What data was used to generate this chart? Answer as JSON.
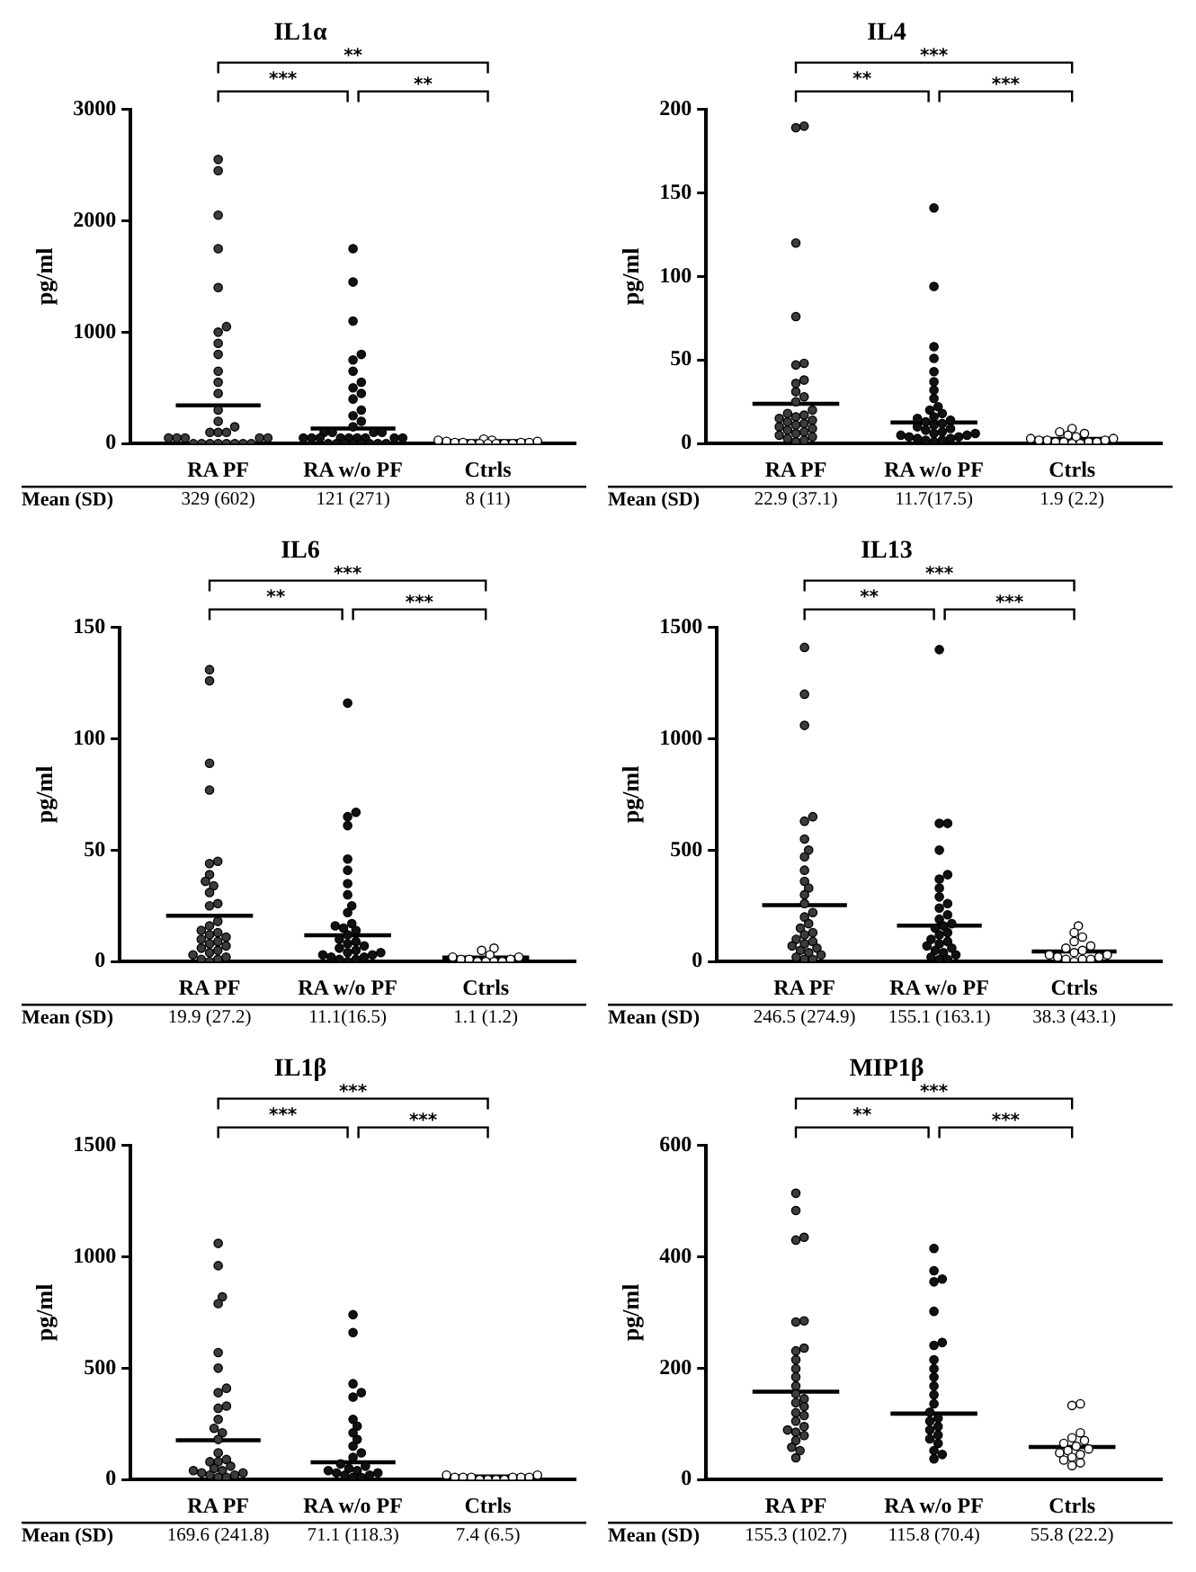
{
  "chart_data": [
    {
      "type": "scatter",
      "title": "IL1α",
      "ylabel": "pg/ml",
      "categories": [
        "RA PF",
        "RA w/o PF",
        "Ctrls"
      ],
      "ylim": [
        0,
        3000
      ],
      "yticks": [
        0,
        1000,
        2000,
        3000
      ],
      "grid": false,
      "legend": false,
      "annotations": [
        "**",
        "***",
        "**",
        "Mean (SD)",
        "329 (602)",
        "121 (271)",
        "8 (11)"
      ],
      "series": [
        {
          "type": "scatter",
          "marker": "circle",
          "color": "#3c3c3c",
          "x": [
            "RA PF",
            "RA PF",
            "RA PF",
            "RA PF",
            "RA PF",
            "RA PF",
            "RA PF",
            "RA PF",
            "RA PF",
            "RA PF",
            "RA PF",
            "RA PF",
            "RA PF",
            "RA PF",
            "RA PF",
            "RA PF",
            "RA PF",
            "RA PF",
            "RA PF",
            "RA PF",
            "RA PF",
            "RA PF",
            "RA PF",
            "RA PF",
            "RA PF",
            "RA PF",
            "RA PF",
            "RA PF",
            "RA PF",
            "RA PF",
            "RA PF"
          ],
          "values": [
            2550,
            2450,
            2050,
            1750,
            1400,
            1050,
            1000,
            900,
            800,
            650,
            550,
            450,
            300,
            200,
            150,
            100,
            100,
            100,
            50,
            50,
            50,
            50,
            50,
            0,
            0,
            0,
            0,
            0,
            0,
            0,
            0
          ]
        },
        {
          "type": "scatter",
          "marker": "circle",
          "color": "#111111",
          "x": [
            "RA w/o PF",
            "RA w/o PF",
            "RA w/o PF",
            "RA w/o PF",
            "RA w/o PF",
            "RA w/o PF",
            "RA w/o PF",
            "RA w/o PF",
            "RA w/o PF",
            "RA w/o PF",
            "RA w/o PF",
            "RA w/o PF",
            "RA w/o PF",
            "RA w/o PF",
            "RA w/o PF",
            "RA w/o PF",
            "RA w/o PF",
            "RA w/o PF",
            "RA w/o PF",
            "RA w/o PF",
            "RA w/o PF",
            "RA w/o PF",
            "RA w/o PF",
            "RA w/o PF",
            "RA w/o PF",
            "RA w/o PF",
            "RA w/o PF",
            "RA w/o PF",
            "RA w/o PF",
            "RA w/o PF",
            "RA w/o PF",
            "RA w/o PF",
            "RA w/o PF",
            "RA w/o PF",
            "RA w/o PF"
          ],
          "values": [
            1750,
            1450,
            1100,
            800,
            750,
            650,
            550,
            500,
            450,
            400,
            300,
            250,
            200,
            150,
            100,
            100,
            100,
            100,
            50,
            50,
            50,
            50,
            50,
            50,
            50,
            50,
            50,
            0,
            0,
            0,
            0,
            0,
            0,
            0,
            0
          ]
        },
        {
          "type": "scatter",
          "marker": "circle",
          "color": "#ffffff",
          "x": [
            "Ctrls",
            "Ctrls",
            "Ctrls",
            "Ctrls",
            "Ctrls",
            "Ctrls",
            "Ctrls",
            "Ctrls",
            "Ctrls",
            "Ctrls",
            "Ctrls",
            "Ctrls",
            "Ctrls",
            "Ctrls",
            "Ctrls"
          ],
          "values": [
            40,
            30,
            30,
            20,
            20,
            10,
            10,
            10,
            10,
            0,
            0,
            0,
            0,
            0,
            0
          ]
        },
        {
          "type": "bar",
          "color": "#000000",
          "base": [
            329,
            121,
            8
          ],
          "values": [
            0,
            0,
            0
          ]
        }
      ]
    },
    {
      "type": "scatter",
      "title": "IL4",
      "ylabel": "pg/ml",
      "categories": [
        "RA PF",
        "RA w/o PF",
        "Ctrls"
      ],
      "ylim": [
        0,
        200
      ],
      "yticks": [
        0,
        50,
        100,
        150,
        200
      ],
      "grid": false,
      "legend": false,
      "annotations": [
        "***",
        "**",
        "***",
        "Mean (SD)",
        "22.9 (37.1)",
        "11.7(17.5)",
        "1.9 (2.2)"
      ],
      "series": [
        {
          "type": "scatter",
          "marker": "circle",
          "color": "#3c3c3c",
          "x": [
            "RA PF",
            "RA PF",
            "RA PF",
            "RA PF",
            "RA PF",
            "RA PF",
            "RA PF",
            "RA PF",
            "RA PF",
            "RA PF",
            "RA PF",
            "RA PF",
            "RA PF",
            "RA PF",
            "RA PF",
            "RA PF",
            "RA PF",
            "RA PF",
            "RA PF",
            "RA PF",
            "RA PF",
            "RA PF",
            "RA PF",
            "RA PF",
            "RA PF",
            "RA PF",
            "RA PF",
            "RA PF",
            "RA PF",
            "RA PF"
          ],
          "values": [
            190,
            189,
            120,
            76,
            48,
            47,
            38,
            36,
            31,
            28,
            25,
            20,
            18,
            17,
            16,
            15,
            14,
            13,
            12,
            11,
            10,
            9,
            8,
            7,
            6,
            5,
            4,
            3,
            2,
            1
          ]
        },
        {
          "type": "scatter",
          "marker": "circle",
          "color": "#111111",
          "x": [
            "RA w/o PF",
            "RA w/o PF",
            "RA w/o PF",
            "RA w/o PF",
            "RA w/o PF",
            "RA w/o PF",
            "RA w/o PF",
            "RA w/o PF",
            "RA w/o PF",
            "RA w/o PF",
            "RA w/o PF",
            "RA w/o PF",
            "RA w/o PF",
            "RA w/o PF",
            "RA w/o PF",
            "RA w/o PF",
            "RA w/o PF",
            "RA w/o PF",
            "RA w/o PF",
            "RA w/o PF",
            "RA w/o PF",
            "RA w/o PF",
            "RA w/o PF",
            "RA w/o PF",
            "RA w/o PF",
            "RA w/o PF",
            "RA w/o PF",
            "RA w/o PF",
            "RA w/o PF",
            "RA w/o PF",
            "RA w/o PF",
            "RA w/o PF"
          ],
          "values": [
            141,
            94,
            58,
            51,
            43,
            37,
            32,
            27,
            22,
            20,
            18,
            16,
            15,
            14,
            13,
            12,
            11,
            10,
            9,
            8,
            7,
            6,
            6,
            5,
            5,
            4,
            4,
            3,
            3,
            2,
            2,
            1
          ]
        },
        {
          "type": "scatter",
          "marker": "circle",
          "color": "#ffffff",
          "x": [
            "Ctrls",
            "Ctrls",
            "Ctrls",
            "Ctrls",
            "Ctrls",
            "Ctrls",
            "Ctrls",
            "Ctrls",
            "Ctrls",
            "Ctrls",
            "Ctrls",
            "Ctrls",
            "Ctrls",
            "Ctrls",
            "Ctrls",
            "Ctrls"
          ],
          "values": [
            9,
            7,
            6,
            5,
            4,
            3,
            3,
            2,
            2,
            2,
            1,
            1,
            1,
            1,
            0,
            0
          ]
        },
        {
          "type": "bar",
          "color": "#000000",
          "base": [
            22.9,
            11.7,
            1.9
          ],
          "values": [
            0,
            0,
            0
          ]
        }
      ]
    },
    {
      "type": "scatter",
      "title": "IL6",
      "ylabel": "pg/ml",
      "categories": [
        "RA PF",
        "RA w/o PF",
        "Ctrls"
      ],
      "ylim": [
        0,
        150
      ],
      "yticks": [
        0,
        50,
        100,
        150
      ],
      "grid": false,
      "legend": false,
      "annotations": [
        "***",
        "**",
        "***",
        "Mean (SD)",
        "19.9 (27.2)",
        "11.1(16.5)",
        "1.1 (1.2)"
      ],
      "series": [
        {
          "type": "scatter",
          "marker": "circle",
          "color": "#3c3c3c",
          "x": [
            "RA PF",
            "RA PF",
            "RA PF",
            "RA PF",
            "RA PF",
            "RA PF",
            "RA PF",
            "RA PF",
            "RA PF",
            "RA PF",
            "RA PF",
            "RA PF",
            "RA PF",
            "RA PF",
            "RA PF",
            "RA PF",
            "RA PF",
            "RA PF",
            "RA PF",
            "RA PF",
            "RA PF",
            "RA PF",
            "RA PF",
            "RA PF",
            "RA PF",
            "RA PF",
            "RA PF",
            "RA PF",
            "RA PF",
            "RA PF"
          ],
          "values": [
            131,
            126,
            89,
            77,
            45,
            44,
            39,
            36,
            34,
            31,
            26,
            25,
            18,
            16,
            14,
            13,
            12,
            11,
            10,
            9,
            8,
            7,
            6,
            5,
            4,
            3,
            2,
            1,
            1,
            0
          ]
        },
        {
          "type": "scatter",
          "marker": "circle",
          "color": "#111111",
          "x": [
            "RA w/o PF",
            "RA w/o PF",
            "RA w/o PF",
            "RA w/o PF",
            "RA w/o PF",
            "RA w/o PF",
            "RA w/o PF",
            "RA w/o PF",
            "RA w/o PF",
            "RA w/o PF",
            "RA w/o PF",
            "RA w/o PF",
            "RA w/o PF",
            "RA w/o PF",
            "RA w/o PF",
            "RA w/o PF",
            "RA w/o PF",
            "RA w/o PF",
            "RA w/o PF",
            "RA w/o PF",
            "RA w/o PF",
            "RA w/o PF",
            "RA w/o PF",
            "RA w/o PF",
            "RA w/o PF",
            "RA w/o PF",
            "RA w/o PF",
            "RA w/o PF",
            "RA w/o PF",
            "RA w/o PF"
          ],
          "values": [
            116,
            67,
            65,
            61,
            46,
            41,
            35,
            30,
            25,
            22,
            17,
            16,
            15,
            14,
            12,
            10,
            9,
            8,
            7,
            6,
            5,
            4,
            4,
            3,
            3,
            2,
            2,
            1,
            1,
            0
          ]
        },
        {
          "type": "scatter",
          "marker": "circle",
          "color": "#ffffff",
          "x": [
            "Ctrls",
            "Ctrls",
            "Ctrls",
            "Ctrls",
            "Ctrls",
            "Ctrls",
            "Ctrls",
            "Ctrls",
            "Ctrls",
            "Ctrls",
            "Ctrls",
            "Ctrls"
          ],
          "values": [
            6,
            5,
            3,
            2,
            2,
            1,
            1,
            1,
            0,
            0,
            0,
            0
          ]
        },
        {
          "type": "bar",
          "color": "#000000",
          "base": [
            19.9,
            11.1,
            1.1
          ],
          "values": [
            0,
            0,
            0
          ]
        }
      ]
    },
    {
      "type": "scatter",
      "title": "IL13",
      "ylabel": "pg/ml",
      "categories": [
        "RA PF",
        "RA w/o PF",
        "Ctrls"
      ],
      "ylim": [
        0,
        1500
      ],
      "yticks": [
        0,
        500,
        1000,
        1500
      ],
      "grid": false,
      "legend": false,
      "annotations": [
        "***",
        "**",
        "***",
        "Mean (SD)",
        "246.5 (274.9)",
        "155.1 (163.1)",
        "38.3 (43.1)"
      ],
      "series": [
        {
          "type": "scatter",
          "marker": "circle",
          "color": "#3c3c3c",
          "x": [
            "RA PF",
            "RA PF",
            "RA PF",
            "RA PF",
            "RA PF",
            "RA PF",
            "RA PF",
            "RA PF",
            "RA PF",
            "RA PF",
            "RA PF",
            "RA PF",
            "RA PF",
            "RA PF",
            "RA PF",
            "RA PF",
            "RA PF",
            "RA PF",
            "RA PF",
            "RA PF",
            "RA PF",
            "RA PF",
            "RA PF",
            "RA PF",
            "RA PF",
            "RA PF",
            "RA PF",
            "RA PF",
            "RA PF",
            "RA PF"
          ],
          "values": [
            1410,
            1200,
            1060,
            650,
            630,
            550,
            500,
            470,
            410,
            360,
            330,
            300,
            260,
            220,
            200,
            170,
            150,
            130,
            120,
            100,
            90,
            80,
            70,
            60,
            50,
            40,
            30,
            20,
            10,
            10
          ]
        },
        {
          "type": "scatter",
          "marker": "circle",
          "color": "#111111",
          "x": [
            "RA w/o PF",
            "RA w/o PF",
            "RA w/o PF",
            "RA w/o PF",
            "RA w/o PF",
            "RA w/o PF",
            "RA w/o PF",
            "RA w/o PF",
            "RA w/o PF",
            "RA w/o PF",
            "RA w/o PF",
            "RA w/o PF",
            "RA w/o PF",
            "RA w/o PF",
            "RA w/o PF",
            "RA w/o PF",
            "RA w/o PF",
            "RA w/o PF",
            "RA w/o PF",
            "RA w/o PF",
            "RA w/o PF",
            "RA w/o PF",
            "RA w/o PF",
            "RA w/o PF",
            "RA w/o PF",
            "RA w/o PF",
            "RA w/o PF",
            "RA w/o PF"
          ],
          "values": [
            1400,
            620,
            620,
            500,
            390,
            370,
            330,
            290,
            260,
            240,
            210,
            190,
            170,
            160,
            150,
            130,
            120,
            100,
            90,
            80,
            70,
            60,
            50,
            40,
            30,
            20,
            10,
            10
          ]
        },
        {
          "type": "scatter",
          "marker": "circle",
          "color": "#ffffff",
          "x": [
            "Ctrls",
            "Ctrls",
            "Ctrls",
            "Ctrls",
            "Ctrls",
            "Ctrls",
            "Ctrls",
            "Ctrls",
            "Ctrls",
            "Ctrls",
            "Ctrls",
            "Ctrls",
            "Ctrls",
            "Ctrls",
            "Ctrls",
            "Ctrls"
          ],
          "values": [
            160,
            130,
            110,
            90,
            70,
            60,
            50,
            40,
            30,
            30,
            20,
            20,
            10,
            10,
            10,
            0
          ]
        },
        {
          "type": "bar",
          "color": "#000000",
          "base": [
            246.5,
            155.1,
            38.3
          ],
          "values": [
            0,
            0,
            0
          ]
        }
      ]
    },
    {
      "type": "scatter",
      "title": "IL1β",
      "ylabel": "pg/ml",
      "categories": [
        "RA PF",
        "RA w/o PF",
        "Ctrls"
      ],
      "ylim": [
        0,
        1500
      ],
      "yticks": [
        0,
        500,
        1000,
        1500
      ],
      "grid": false,
      "legend": false,
      "annotations": [
        "***",
        "***",
        "***",
        "Mean (SD)",
        "169.6 (241.8)",
        "71.1 (118.3)",
        "7.4 (6.5)"
      ],
      "series": [
        {
          "type": "scatter",
          "marker": "circle",
          "color": "#3c3c3c",
          "x": [
            "RA PF",
            "RA PF",
            "RA PF",
            "RA PF",
            "RA PF",
            "RA PF",
            "RA PF",
            "RA PF",
            "RA PF",
            "RA PF",
            "RA PF",
            "RA PF",
            "RA PF",
            "RA PF",
            "RA PF",
            "RA PF",
            "RA PF",
            "RA PF",
            "RA PF",
            "RA PF",
            "RA PF",
            "RA PF",
            "RA PF",
            "RA PF",
            "RA PF",
            "RA PF",
            "RA PF",
            "RA PF"
          ],
          "values": [
            1060,
            960,
            820,
            790,
            570,
            500,
            410,
            390,
            330,
            320,
            270,
            230,
            210,
            180,
            120,
            90,
            80,
            80,
            60,
            50,
            40,
            40,
            30,
            30,
            20,
            20,
            10,
            10
          ]
        },
        {
          "type": "scatter",
          "marker": "circle",
          "color": "#111111",
          "x": [
            "RA w/o PF",
            "RA w/o PF",
            "RA w/o PF",
            "RA w/o PF",
            "RA w/o PF",
            "RA w/o PF",
            "RA w/o PF",
            "RA w/o PF",
            "RA w/o PF",
            "RA w/o PF",
            "RA w/o PF",
            "RA w/o PF",
            "RA w/o PF",
            "RA w/o PF",
            "RA w/o PF",
            "RA w/o PF",
            "RA w/o PF",
            "RA w/o PF",
            "RA w/o PF",
            "RA w/o PF",
            "RA w/o PF",
            "RA w/o PF",
            "RA w/o PF"
          ],
          "values": [
            740,
            660,
            430,
            390,
            370,
            270,
            240,
            210,
            180,
            150,
            120,
            100,
            70,
            60,
            50,
            40,
            40,
            30,
            30,
            20,
            20,
            10,
            10
          ]
        },
        {
          "type": "scatter",
          "marker": "circle",
          "color": "#ffffff",
          "x": [
            "Ctrls",
            "Ctrls",
            "Ctrls",
            "Ctrls",
            "Ctrls",
            "Ctrls",
            "Ctrls",
            "Ctrls",
            "Ctrls",
            "Ctrls",
            "Ctrls",
            "Ctrls"
          ],
          "values": [
            20,
            20,
            10,
            10,
            10,
            10,
            10,
            10,
            0,
            0,
            0,
            0
          ]
        },
        {
          "type": "bar",
          "color": "#000000",
          "base": [
            169.6,
            71.1,
            7.4
          ],
          "values": [
            0,
            0,
            0
          ]
        }
      ]
    },
    {
      "type": "scatter",
      "title": "MIP1β",
      "ylabel": "pg/ml",
      "categories": [
        "RA PF",
        "RA w/o PF",
        "Ctrls"
      ],
      "ylim": [
        0,
        600
      ],
      "yticks": [
        0,
        200,
        400,
        600
      ],
      "grid": false,
      "legend": false,
      "annotations": [
        "***",
        "**",
        "***",
        "Mean (SD)",
        "155.3 (102.7)",
        "115.8 (70.4)",
        "55.8 (22.2)"
      ],
      "series": [
        {
          "type": "scatter",
          "marker": "circle",
          "color": "#3c3c3c",
          "x": [
            "RA PF",
            "RA PF",
            "RA PF",
            "RA PF",
            "RA PF",
            "RA PF",
            "RA PF",
            "RA PF",
            "RA PF",
            "RA PF",
            "RA PF",
            "RA PF",
            "RA PF",
            "RA PF",
            "RA PF",
            "RA PF",
            "RA PF",
            "RA PF",
            "RA PF",
            "RA PF",
            "RA PF",
            "RA PF",
            "RA PF",
            "RA PF",
            "RA PF",
            "RA PF",
            "RA PF"
          ],
          "values": [
            514,
            483,
            435,
            430,
            285,
            283,
            236,
            231,
            215,
            199,
            184,
            168,
            154,
            145,
            138,
            131,
            120,
            115,
            105,
            95,
            89,
            85,
            79,
            70,
            58,
            52,
            39
          ]
        },
        {
          "type": "scatter",
          "marker": "circle",
          "color": "#111111",
          "x": [
            "RA w/o PF",
            "RA w/o PF",
            "RA w/o PF",
            "RA w/o PF",
            "RA w/o PF",
            "RA w/o PF",
            "RA w/o PF",
            "RA w/o PF",
            "RA w/o PF",
            "RA w/o PF",
            "RA w/o PF",
            "RA w/o PF",
            "RA w/o PF",
            "RA w/o PF",
            "RA w/o PF",
            "RA w/o PF",
            "RA w/o PF",
            "RA w/o PF",
            "RA w/o PF",
            "RA w/o PF",
            "RA w/o PF",
            "RA w/o PF",
            "RA w/o PF",
            "RA w/o PF"
          ],
          "values": [
            415,
            375,
            360,
            355,
            302,
            246,
            241,
            215,
            199,
            184,
            168,
            152,
            136,
            121,
            110,
            105,
            95,
            89,
            80,
            73,
            65,
            52,
            45,
            37
          ]
        },
        {
          "type": "scatter",
          "marker": "circle",
          "color": "#ffffff",
          "x": [
            "Ctrls",
            "Ctrls",
            "Ctrls",
            "Ctrls",
            "Ctrls",
            "Ctrls",
            "Ctrls",
            "Ctrls",
            "Ctrls",
            "Ctrls",
            "Ctrls",
            "Ctrls",
            "Ctrls",
            "Ctrls",
            "Ctrls"
          ],
          "values": [
            136,
            133,
            84,
            75,
            70,
            65,
            60,
            55,
            52,
            48,
            45,
            40,
            35,
            30,
            25
          ]
        },
        {
          "type": "bar",
          "color": "#000000",
          "base": [
            155.3,
            115.8,
            55.8
          ],
          "values": [
            0,
            0,
            0
          ]
        }
      ]
    }
  ]
}
